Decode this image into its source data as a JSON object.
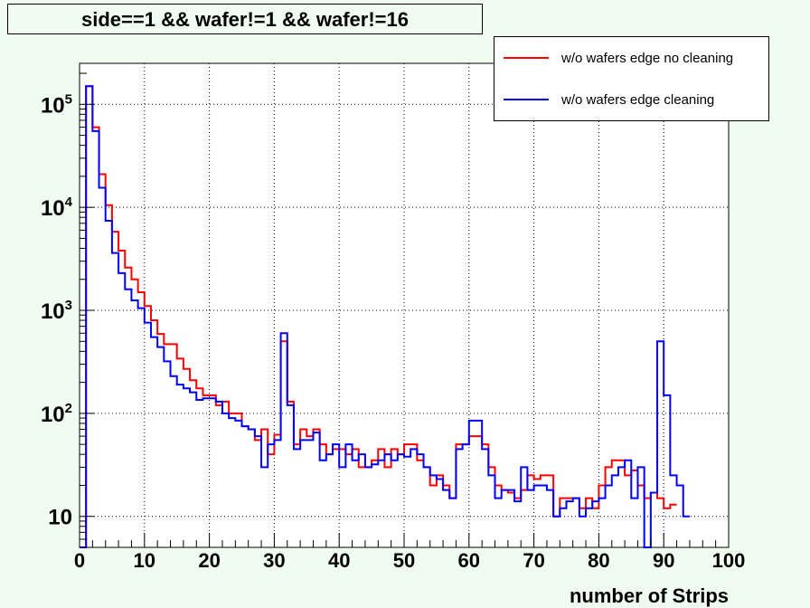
{
  "title": "side==1 && wafer!=1 && wafer!=16",
  "chart_data": {
    "type": "histogram",
    "title": "side==1 && wafer!=1 && wafer!=16",
    "xlabel": "number of Strips",
    "ylabel": "",
    "xlim": [
      0,
      100
    ],
    "ylim": [
      5,
      250000
    ],
    "yscale": "log",
    "grid": true,
    "legend_position": "top-right",
    "x_ticks": [
      "0",
      "10",
      "20",
      "30",
      "40",
      "50",
      "60",
      "70",
      "80",
      "90",
      "100"
    ],
    "y_ticks": [
      {
        "value": 10,
        "base": "10",
        "exp": ""
      },
      {
        "value": 100,
        "base": "10",
        "exp": "2"
      },
      {
        "value": 1000,
        "base": "10",
        "exp": "3"
      },
      {
        "value": 10000,
        "base": "10",
        "exp": "4"
      },
      {
        "value": 100000,
        "base": "10",
        "exp": "5"
      }
    ],
    "bin_width": 1,
    "series": [
      {
        "name": "w/o wafers edge no cleaning",
        "color": "#ff0000",
        "values": [
          5,
          150000,
          60000,
          21000,
          10500,
          5800,
          3800,
          2600,
          2000,
          1500,
          1100,
          800,
          590,
          470,
          470,
          340,
          270,
          210,
          175,
          150,
          150,
          120,
          130,
          100,
          100,
          75,
          70,
          55,
          70,
          40,
          62,
          500,
          130,
          50,
          70,
          60,
          70,
          50,
          40,
          45,
          45,
          40,
          45,
          30,
          30,
          35,
          45,
          30,
          45,
          40,
          50,
          50,
          35,
          30,
          20,
          25,
          20,
          15,
          50,
          50,
          60,
          60,
          50,
          30,
          20,
          18,
          17,
          15,
          18,
          25,
          23,
          25,
          25,
          10,
          15,
          15,
          15,
          12,
          15,
          12,
          20,
          30,
          35,
          35,
          25,
          28,
          20,
          15,
          17,
          15,
          12,
          13
        ]
      },
      {
        "name": "w/o wafers edge cleaning",
        "color": "#0000ff",
        "values": [
          5,
          150000,
          55000,
          15500,
          7400,
          3600,
          2300,
          1600,
          1250,
          1050,
          760,
          550,
          440,
          320,
          230,
          190,
          175,
          160,
          135,
          140,
          140,
          130,
          100,
          90,
          85,
          75,
          70,
          60,
          30,
          50,
          55,
          600,
          120,
          45,
          55,
          55,
          65,
          35,
          40,
          50,
          30,
          50,
          35,
          40,
          30,
          32,
          35,
          40,
          35,
          40,
          38,
          45,
          40,
          30,
          25,
          23,
          18,
          15,
          45,
          50,
          85,
          85,
          45,
          25,
          15,
          18,
          18,
          14,
          30,
          18,
          20,
          20,
          18,
          10,
          12,
          14,
          15,
          10,
          12,
          14,
          15,
          20,
          25,
          30,
          35,
          15,
          30,
          5,
          17,
          500,
          150,
          25,
          20,
          10
        ]
      }
    ]
  }
}
